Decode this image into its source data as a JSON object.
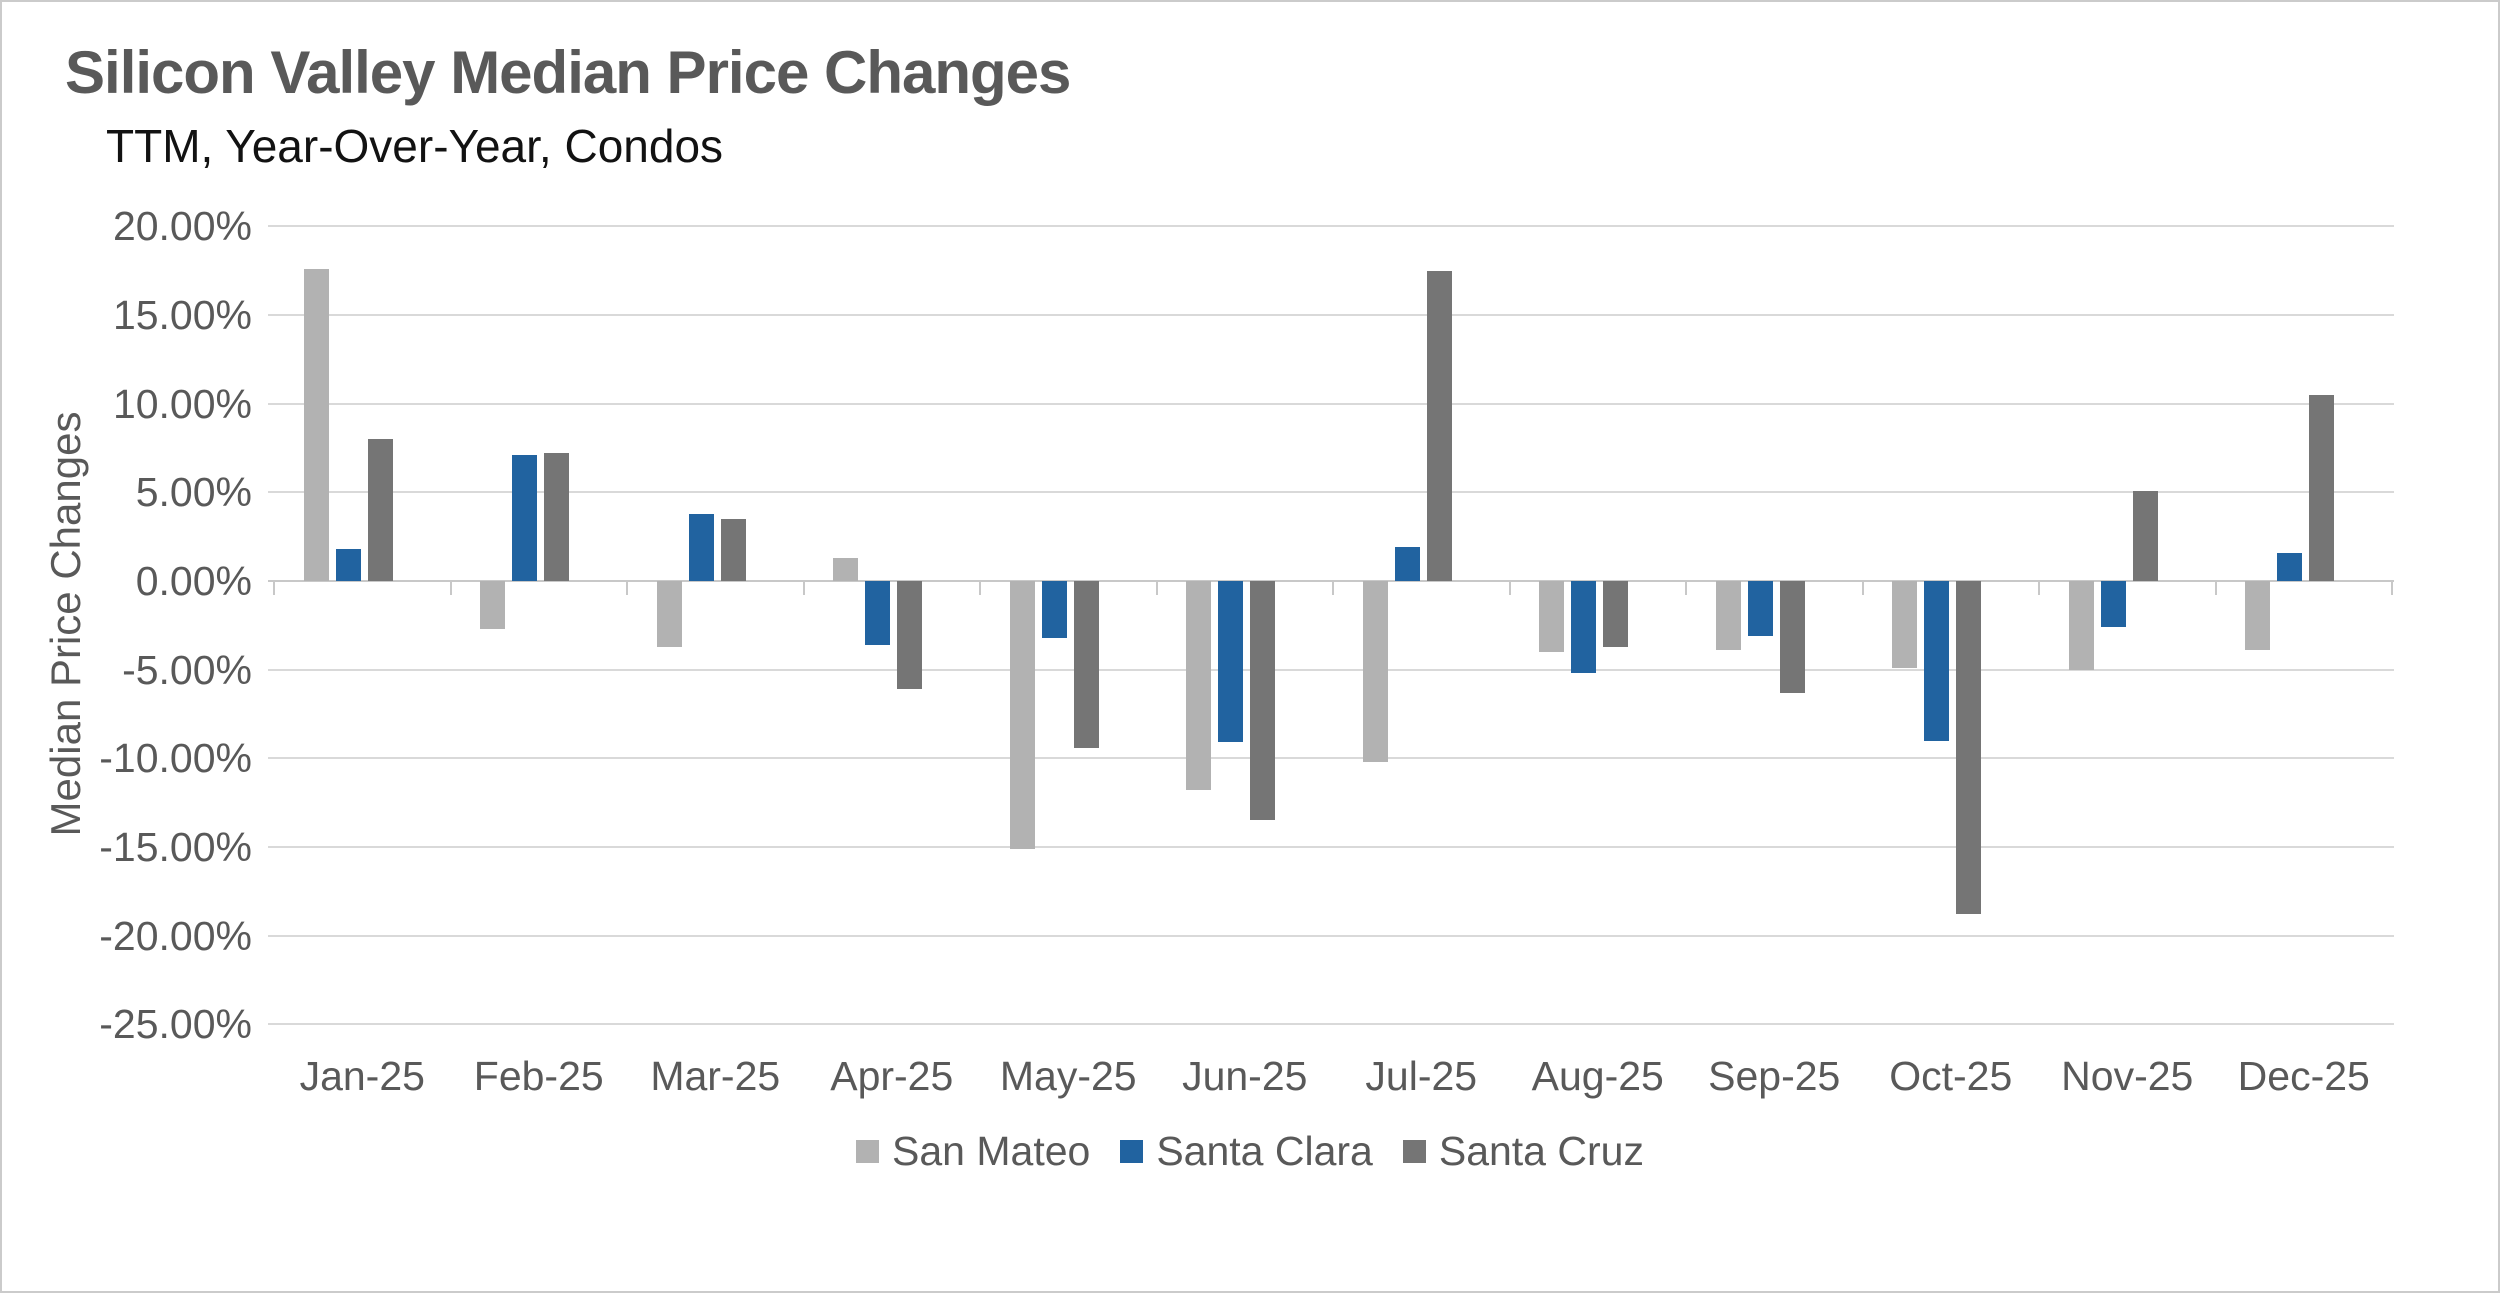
{
  "header": {
    "title": "Silicon Valley Median Price Changes",
    "subtitle": "TTM, Year-Over-Year, Condos"
  },
  "axes": {
    "y_label": "Median Price Changes",
    "y_tick_labels": [
      "20.00%",
      "15.00%",
      "10.00%",
      "5.00%",
      "0.00%",
      "-5.00%",
      "-10.00%",
      "-15.00%",
      "-20.00%",
      "-25.00%"
    ]
  },
  "chart_data": {
    "type": "bar",
    "title": "Silicon Valley Median Price Changes",
    "subtitle": "TTM, Year-Over-Year, Condos",
    "categories": [
      "Jan-25",
      "Feb-25",
      "Mar-25",
      "Apr-25",
      "May-25",
      "Jun-25",
      "Jul-25",
      "Aug-25",
      "Sep-25",
      "Oct-25",
      "Nov-25",
      "Dec-25"
    ],
    "series": [
      {
        "name": "San Mateo",
        "color": "#b2b2b2",
        "values": [
          17.6,
          -2.7,
          -3.7,
          1.3,
          -15.1,
          -11.8,
          -10.2,
          -4.0,
          -3.9,
          -4.9,
          -5.0,
          -3.9
        ]
      },
      {
        "name": "Santa Clara",
        "color": "#2163a0",
        "values": [
          1.8,
          7.1,
          3.8,
          -3.6,
          -3.2,
          -9.1,
          1.9,
          -5.2,
          -3.1,
          -9.0,
          -2.6,
          1.6
        ]
      },
      {
        "name": "Santa Cruz",
        "color": "#757575",
        "values": [
          8.0,
          7.2,
          3.5,
          -6.1,
          -9.4,
          -13.5,
          17.5,
          -3.7,
          -6.3,
          -18.8,
          5.1,
          10.5
        ]
      }
    ],
    "xlabel": "",
    "ylabel": "Median Price Changes",
    "ylim": [
      -25,
      20
    ],
    "y_step": 5,
    "ytick_format": "0.00%",
    "grid": true,
    "legend_position": "bottom"
  }
}
